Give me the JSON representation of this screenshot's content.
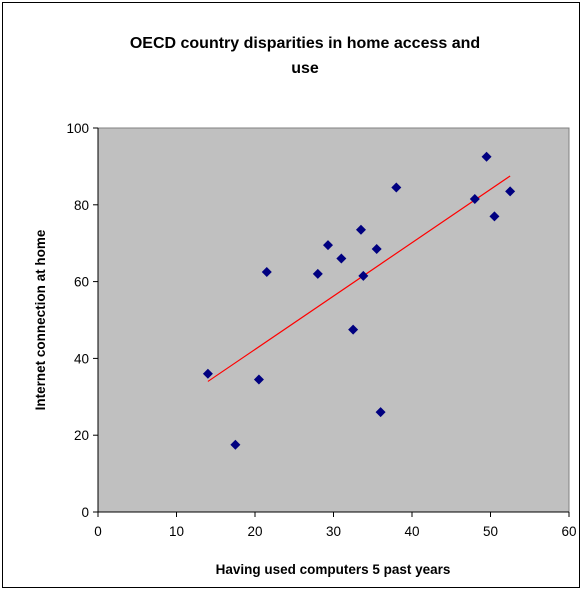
{
  "chart_data": {
    "type": "scatter",
    "title_lines": [
      "OECD country disparities in home access and",
      "use"
    ],
    "xlabel": "Having used computers 5 past years",
    "ylabel": "Internet connection at home",
    "xlim": [
      0,
      60
    ],
    "ylim": [
      0,
      100
    ],
    "xticks": [
      0,
      10,
      20,
      30,
      40,
      50,
      60
    ],
    "yticks": [
      0,
      20,
      40,
      60,
      80,
      100
    ],
    "grid": false,
    "legend": "none",
    "colors": {
      "plot_background": "#c0c0c0",
      "points": "#000080",
      "trendline": "#ff0000"
    },
    "series": [
      {
        "points": [
          [
            14.0,
            36.0
          ],
          [
            17.5,
            17.5
          ],
          [
            20.5,
            34.5
          ],
          [
            21.5,
            62.5
          ],
          [
            28.0,
            62.0
          ],
          [
            29.3,
            69.5
          ],
          [
            31.0,
            66.0
          ],
          [
            32.5,
            47.5
          ],
          [
            33.5,
            73.5
          ],
          [
            33.8,
            61.5
          ],
          [
            35.5,
            68.5
          ],
          [
            36.0,
            26.0
          ],
          [
            38.0,
            84.5
          ],
          [
            48.0,
            81.5
          ],
          [
            49.5,
            92.5
          ],
          [
            50.5,
            77.0
          ],
          [
            52.5,
            83.5
          ]
        ]
      }
    ],
    "trendline": {
      "x": [
        14.0,
        52.5
      ],
      "y": [
        34.0,
        87.5
      ]
    }
  }
}
